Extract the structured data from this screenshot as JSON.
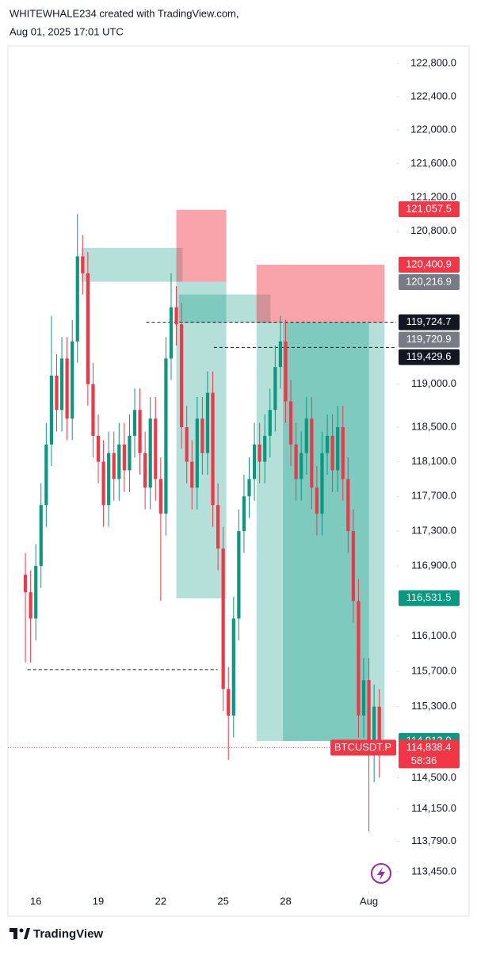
{
  "header": {
    "line1": "WHITEWHALE234 created with TradingView.com,",
    "line2": "Aug 01, 2025 17:01 UTC"
  },
  "chart_data": {
    "type": "candlestick",
    "log_scale": true,
    "grid": false,
    "up_color": "#089981",
    "down_color": "#f23645",
    "xlim": [
      14.66,
      33.31
    ],
    "xticks": [
      16,
      19,
      22,
      25,
      28,
      {
        "value": 32,
        "label": "Aug"
      }
    ],
    "ylim": [
      113230,
      122990
    ],
    "yticks": [
      {
        "value": 122800,
        "label": "122,800.0"
      },
      {
        "value": 122400,
        "label": "122,400.0"
      },
      {
        "value": 122000,
        "label": "122,000.0"
      },
      {
        "value": 121600,
        "label": "121,600.0"
      },
      {
        "value": 121200,
        "label": "121,200.0"
      },
      {
        "value": 120800,
        "label": "120,800.0"
      },
      {
        "value": 119000,
        "label": "119,000.0"
      },
      {
        "value": 118500,
        "label": "118,500.0"
      },
      {
        "value": 118100,
        "label": "118,100.0"
      },
      {
        "value": 117700,
        "label": "117,700.0"
      },
      {
        "value": 117300,
        "label": "117,300.0"
      },
      {
        "value": 116900,
        "label": "116,900.0"
      },
      {
        "value": 116100,
        "label": "116,100.0"
      },
      {
        "value": 115700,
        "label": "115,700.0"
      },
      {
        "value": 115300,
        "label": "115,300.0"
      },
      {
        "value": 114500,
        "label": "114,500.0"
      },
      {
        "value": 114150,
        "label": "114,150.0"
      },
      {
        "value": 113790,
        "label": "113,790.0"
      },
      {
        "value": 113450,
        "label": "113,450.0"
      }
    ],
    "x": [
      15.5,
      15.75,
      16,
      16.25,
      16.5,
      16.75,
      17,
      17.25,
      17.5,
      17.75,
      18,
      18.25,
      18.5,
      18.75,
      19,
      19.25,
      19.5,
      19.75,
      20,
      20.25,
      20.5,
      20.75,
      21,
      21.25,
      21.5,
      21.75,
      22,
      22.25,
      22.5,
      22.75,
      23,
      23.25,
      23.5,
      23.75,
      24,
      24.25,
      24.5,
      24.75,
      25,
      25.25,
      25.5,
      25.75,
      26,
      26.25,
      26.5,
      26.75,
      27,
      27.25,
      27.5,
      27.75,
      28,
      28.25,
      28.5,
      28.75,
      29,
      29.25,
      29.5,
      29.75,
      30,
      30.25,
      30.5,
      30.75,
      31,
      31.25,
      31.5,
      31.75,
      32,
      32.25,
      32.5
    ],
    "open": [
      116800,
      116600,
      116300,
      116900,
      117600,
      118300,
      119100,
      118700,
      119300,
      118600,
      119500,
      120500,
      120300,
      119000,
      118400,
      118100,
      117600,
      118200,
      117900,
      118300,
      118000,
      118400,
      118700,
      118200,
      117800,
      118600,
      117900,
      117500,
      119300,
      119900,
      119700,
      118500,
      118100,
      117800,
      118600,
      118200,
      118900,
      117600,
      117100,
      115500,
      115200,
      116300,
      117300,
      117700,
      117900,
      118300,
      118100,
      118400,
      118700,
      119200,
      119500,
      118800,
      118300,
      117900,
      118200,
      118600,
      117800,
      117500,
      118200,
      118400,
      118000,
      118500,
      117900,
      117300,
      116500,
      115200,
      115600,
      114800,
      115300
    ],
    "high": [
      117050,
      116850,
      117150,
      117850,
      118550,
      119800,
      119350,
      119550,
      119550,
      119750,
      121000,
      120750,
      120550,
      119250,
      118650,
      118350,
      118450,
      118450,
      118550,
      118550,
      118650,
      118950,
      118950,
      118450,
      118850,
      118850,
      118150,
      119550,
      120300,
      120150,
      119950,
      118750,
      118350,
      118850,
      118850,
      119150,
      119150,
      117850,
      117350,
      115750,
      116550,
      117550,
      117950,
      118150,
      118550,
      118550,
      118650,
      118950,
      119450,
      119800,
      119750,
      119050,
      118550,
      118450,
      118850,
      118850,
      118050,
      118450,
      118650,
      118650,
      118750,
      118750,
      118150,
      117550,
      116750,
      115850,
      115850,
      115550,
      115500
    ],
    "low": [
      115800,
      115800,
      116050,
      116650,
      117350,
      118050,
      118450,
      118450,
      118350,
      118350,
      119250,
      120050,
      118750,
      118150,
      117850,
      117350,
      117350,
      117650,
      117650,
      117750,
      117750,
      118150,
      117950,
      117550,
      117550,
      117650,
      116500,
      117250,
      119050,
      119450,
      118250,
      117850,
      117550,
      117550,
      117950,
      117950,
      117350,
      116850,
      115250,
      114700,
      114950,
      116050,
      117050,
      117450,
      117650,
      117850,
      117850,
      118150,
      118450,
      118950,
      118550,
      118050,
      117650,
      117650,
      117950,
      117550,
      117250,
      117250,
      117950,
      117750,
      117750,
      117650,
      117050,
      116250,
      114950,
      114950,
      113900,
      114450,
      114500
    ],
    "close": [
      116600,
      116300,
      116900,
      117600,
      118300,
      119100,
      118700,
      119300,
      118600,
      119500,
      120500,
      120300,
      119000,
      118400,
      118100,
      117600,
      118200,
      117900,
      118300,
      118000,
      118400,
      118700,
      118200,
      117800,
      118600,
      117900,
      117500,
      119300,
      119900,
      119700,
      118500,
      118100,
      117800,
      118600,
      118200,
      118900,
      117600,
      117100,
      115500,
      115200,
      116300,
      117300,
      117700,
      117900,
      118300,
      118100,
      118400,
      118700,
      119200,
      119500,
      118800,
      118300,
      117900,
      118200,
      118600,
      117800,
      117500,
      118200,
      118400,
      118000,
      118500,
      117900,
      117300,
      116500,
      115200,
      115600,
      114800,
      115300,
      114838.4
    ],
    "zones": [
      {
        "x": [
          18.2,
          23.05
        ],
        "y": [
          120200,
          120600
        ],
        "color": "#089981"
      },
      {
        "x": [
          22.75,
          25.15
        ],
        "y": [
          120200,
          121050
        ],
        "color": "#f23645"
      },
      {
        "x": [
          22.75,
          25.15
        ],
        "y": [
          116530,
          120200
        ],
        "color": "#089981"
      },
      {
        "x": [
          22.87,
          27.27
        ],
        "y": [
          119720,
          120050
        ],
        "color": "#089981"
      },
      {
        "x": [
          26.6,
          32.75
        ],
        "y": [
          119720.9,
          120400.9
        ],
        "color": "#f23645"
      },
      {
        "x": [
          26.6,
          32.75
        ],
        "y": [
          114913,
          119720.9
        ],
        "color": "#089981"
      },
      {
        "x": [
          27.87,
          32.0
        ],
        "y": [
          114913,
          119720.9
        ],
        "color": "#089981"
      }
    ],
    "hlines": [
      {
        "value": 119724.7,
        "x": [
          21.3,
          33.31
        ]
      },
      {
        "value": 119429.6,
        "x": [
          24.55,
          33.31
        ]
      },
      {
        "value": 115720,
        "x": [
          15.6,
          24.73
        ]
      }
    ],
    "price_labels": [
      {
        "value": 121057.5,
        "label": "121,057.5",
        "color": "#f23645"
      },
      {
        "value": 120400.9,
        "label": "120,400.9",
        "color": "#f23645"
      },
      {
        "value": 120216.9,
        "label": "120,216.9",
        "color": "#787b86"
      },
      {
        "value": 119724.7,
        "label": "119,724.7",
        "color": "#131722"
      },
      {
        "value": 119720.9,
        "label": "119,720.9",
        "color": "#787b86"
      },
      {
        "value": 119429.6,
        "label": "119,429.6",
        "color": "#131722"
      },
      {
        "value": 116531.5,
        "label": "116,531.5",
        "color": "#089981"
      },
      {
        "value": 114913.0,
        "label": "114,913.0",
        "color": "#089981"
      }
    ],
    "current_price": {
      "symbol": "BTCUSDT.P",
      "value": 114838.4,
      "label": "114,838.4",
      "countdown": "58:36",
      "color": "#f23645"
    }
  },
  "footer": {
    "brand": "TradingView"
  }
}
